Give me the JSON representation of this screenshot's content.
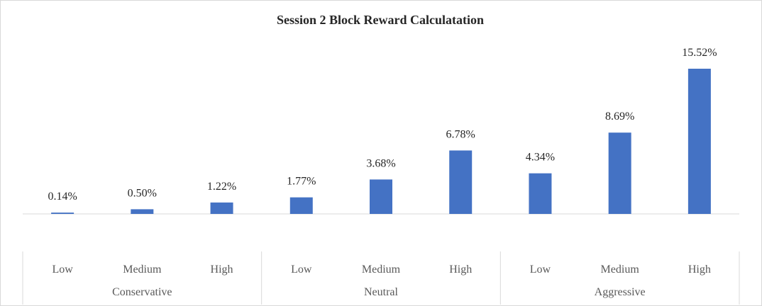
{
  "chart_data": {
    "type": "bar",
    "title": "Session 2 Block Reward Calculatation",
    "groups": [
      {
        "name": "Conservative",
        "categories": [
          "Low",
          "Medium",
          "High"
        ],
        "values": [
          0.14,
          0.5,
          1.22
        ],
        "labels": [
          "0.14%",
          "0.50%",
          "1.22%"
        ]
      },
      {
        "name": "Neutral",
        "categories": [
          "Low",
          "Medium",
          "High"
        ],
        "values": [
          1.77,
          3.68,
          6.78
        ],
        "labels": [
          "1.77%",
          "3.68%",
          "6.78%"
        ]
      },
      {
        "name": "Aggressive",
        "categories": [
          "Low",
          "Medium",
          "High"
        ],
        "values": [
          4.34,
          8.69,
          15.52
        ],
        "labels": [
          "4.34%",
          "8.69%",
          "15.52%"
        ]
      }
    ],
    "value_unit": "%",
    "ylim": [
      0,
      15.52
    ],
    "grid": false,
    "legend": "none",
    "bar_color": "#4472c4"
  }
}
